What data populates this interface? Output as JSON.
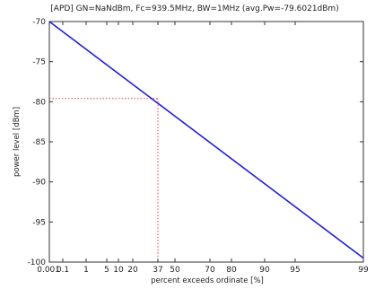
{
  "chart_data": {
    "type": "line",
    "title": "[APD] GN=NaNdBm, Fc=939.5MHz, BW=1MHz (avg.Pw=-79.6021dBm)",
    "xlabel": "percent exceeds ordinate [%]",
    "ylabel": "power level [dBm]",
    "x_tick_labels": [
      "0.001",
      "0.1",
      "1",
      "5",
      "10",
      "20",
      "37",
      "50",
      "70",
      "80",
      "90",
      "95",
      "99"
    ],
    "y_ticks": [
      -70,
      -75,
      -80,
      -85,
      -90,
      -95,
      -100
    ],
    "y_tick_labels": [
      "-70",
      "-75",
      "-80",
      "-85",
      "-90",
      "-95",
      "-100"
    ],
    "ylim": [
      -100,
      -70
    ],
    "series": [
      {
        "color": "#1f1fd6",
        "points": [
          {
            "x": "0.001",
            "y": -70
          },
          {
            "x": "99",
            "y": -99.5
          }
        ]
      }
    ],
    "reference": {
      "x": "37",
      "y": -79.6,
      "color": "#e0404a",
      "style": "dotted"
    },
    "grid": false,
    "legend": "none"
  }
}
